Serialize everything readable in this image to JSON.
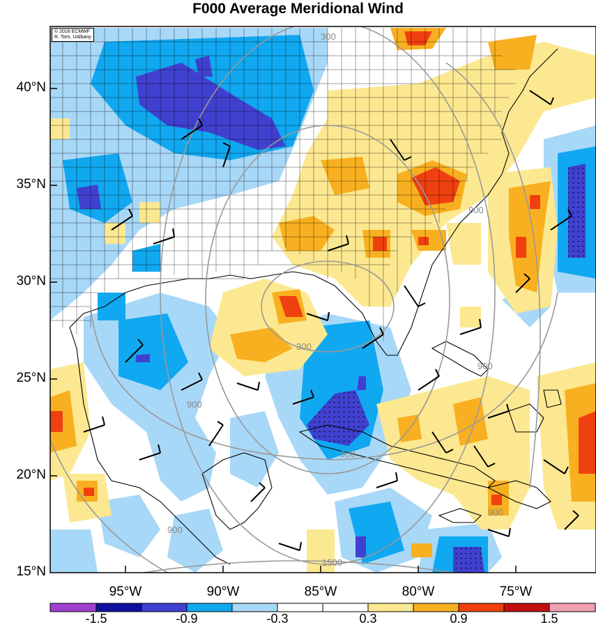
{
  "title": "F000 Average Meridional Wind",
  "credit": {
    "line1": "© 2016 ECMWF",
    "line2": "R. Torn, UAlbany"
  },
  "map": {
    "projection": "lat-lon",
    "lon_range": [
      -99,
      -72
    ],
    "lat_range": [
      15,
      43
    ],
    "lat_ticks": [
      "40°N",
      "35°N",
      "30°N",
      "25°N",
      "20°N",
      "15°N"
    ],
    "lon_ticks": [
      "95°W",
      "90°W",
      "85°W",
      "80°W",
      "75°W"
    ],
    "contour_color": "#999999",
    "contour_labels": [
      "300",
      "300",
      "900",
      "900",
      "900",
      "900",
      "900",
      "900",
      "1500"
    ]
  },
  "colorbar": {
    "levels": [
      "-1.5",
      "-0.9",
      "-0.3",
      "0.3",
      "0.9",
      "1.5"
    ],
    "colors": [
      "#a040d0",
      "#1010a0",
      "#4040d0",
      "#10a8f0",
      "#a8d8f8",
      "#ffffff",
      "#ffffff",
      "#fce890",
      "#f8b020",
      "#f04010",
      "#c01010",
      "#f0a0b0"
    ]
  }
}
